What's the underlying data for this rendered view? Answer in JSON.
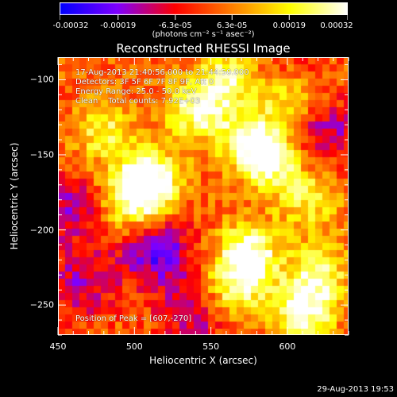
{
  "chart_data": {
    "type": "heatmap",
    "title": "Reconstructed RHESSI Image",
    "xlabel": "Heliocentric X (arcsec)",
    "ylabel": "Heliocentric Y (arcsec)",
    "xlim": [
      450,
      640
    ],
    "ylim": [
      -270,
      -85
    ],
    "x_ticks": [
      450,
      500,
      550,
      600
    ],
    "y_ticks": [
      -100,
      -150,
      -200,
      -250
    ],
    "colorbar": {
      "range": [
        -0.00032,
        0.00032
      ],
      "tick_values": [
        -0.00032,
        -0.00019,
        -6.3e-05,
        6.3e-05,
        0.00019,
        0.00032
      ],
      "tick_labels": [
        "-0.00032",
        "-0.00019",
        "-6.3e-05",
        "6.3e-05",
        "0.00019",
        "0.00032"
      ],
      "unit_label": "(photons cm⁻² s⁻¹ asec⁻²)",
      "colors": [
        "#0000ff",
        "#7f00ff",
        "#ff0000",
        "#ff8000",
        "#ffff00",
        "#ffffff"
      ]
    },
    "annotations": {
      "time_range": "17-Aug-2013 21:40:56.000 to 21:44:50.000",
      "detectors": "Detectors: 3F 5F 6F 7F 8F 9F, Att 0",
      "energy_range": "Energy Range: 25.0 - 50.0 keV",
      "method": "Clean    Total counts: 7.92E+03",
      "peak_position": "Position of Peak = [607,-270]"
    },
    "grid": false,
    "hot_regions": [
      {
        "x": 510,
        "y": -165,
        "level": 0.95
      },
      {
        "x": 500,
        "y": -180,
        "level": 0.85
      },
      {
        "x": 540,
        "y": -120,
        "level": 0.8
      },
      {
        "x": 575,
        "y": -140,
        "level": 0.85
      },
      {
        "x": 590,
        "y": -155,
        "level": 0.75
      },
      {
        "x": 560,
        "y": -100,
        "level": 0.7
      },
      {
        "x": 575,
        "y": -215,
        "level": 0.95
      },
      {
        "x": 565,
        "y": -240,
        "level": 0.75
      },
      {
        "x": 610,
        "y": -255,
        "level": 0.9
      },
      {
        "x": 620,
        "y": -230,
        "level": 0.7
      },
      {
        "x": 480,
        "y": -135,
        "level": 0.6
      },
      {
        "x": 600,
        "y": -110,
        "level": 0.7
      },
      {
        "x": 615,
        "y": -180,
        "level": 0.55
      }
    ],
    "cold_regions": [
      {
        "x": 515,
        "y": -215,
        "level": -0.75
      },
      {
        "x": 455,
        "y": -185,
        "level": -0.55
      },
      {
        "x": 465,
        "y": -235,
        "level": -0.5
      },
      {
        "x": 540,
        "y": -255,
        "level": -0.5
      },
      {
        "x": 625,
        "y": -135,
        "level": -0.5
      },
      {
        "x": 600,
        "y": -95,
        "level": -0.35
      }
    ]
  },
  "footer_timestamp": "29-Aug-2013 19:53"
}
